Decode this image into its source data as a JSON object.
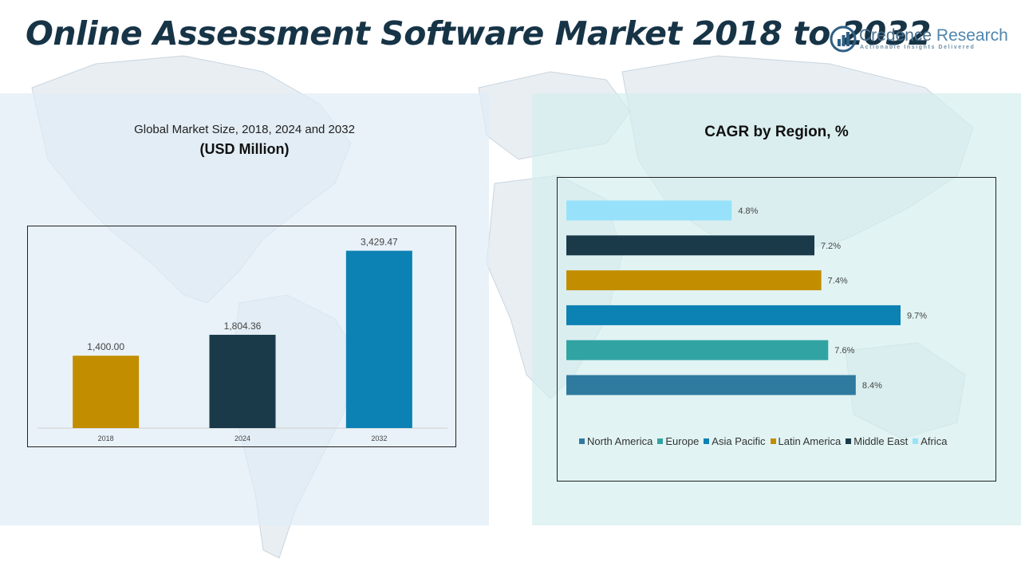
{
  "header": {
    "title": "Online Assessment Software Market 2018 to 2032",
    "logo_name_dark": "Credence",
    "logo_name_light": " Research",
    "logo_tagline": "Actionable Insights Delivered"
  },
  "left_panel": {
    "subtitle": "Global Market Size, 2018, 2024 and 2032",
    "unit": "(USD Million)"
  },
  "right_panel": {
    "title": "CAGR by Region, %"
  },
  "chart_data": [
    {
      "type": "bar",
      "title": "Global Market Size, 2018, 2024 and 2032",
      "ylabel": "(USD Million)",
      "categories": [
        "2018",
        "2024",
        "2032"
      ],
      "values": [
        1400.0,
        1804.36,
        3429.47
      ],
      "value_labels": [
        "1,400.00",
        "1,804.36",
        "3,429.47"
      ],
      "colors": [
        "#c28e00",
        "#1a3a4a",
        "#0c81b3"
      ],
      "ylim": [
        0,
        3900
      ],
      "grid": false,
      "legend": "none"
    },
    {
      "type": "bar",
      "orientation": "horizontal",
      "title": "CAGR by Region, %",
      "categories": [
        "North America",
        "Europe",
        "Asia Pacific",
        "Latin America",
        "Middle East",
        "Africa"
      ],
      "values": [
        8.4,
        7.6,
        9.7,
        7.4,
        7.2,
        4.8
      ],
      "value_labels": [
        "8.4%",
        "7.6%",
        "9.7%",
        "7.4%",
        "7.2%",
        "4.8%"
      ],
      "colors": [
        "#2f7a9f",
        "#31a3a3",
        "#0c81b3",
        "#c28e00",
        "#1a3a4a",
        "#97e2fa"
      ],
      "xlim": [
        0,
        9.7
      ],
      "grid": false,
      "legend": "bottom"
    }
  ]
}
